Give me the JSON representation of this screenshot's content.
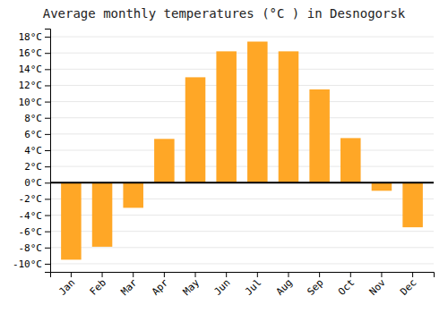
{
  "chart_data": {
    "type": "bar",
    "title": "Average monthly temperatures (°C ) in Desnogorsk",
    "categories": [
      "Jan",
      "Feb",
      "Mar",
      "Apr",
      "May",
      "Jun",
      "Jul",
      "Aug",
      "Sep",
      "Oct",
      "Nov",
      "Dec"
    ],
    "values": [
      -9.5,
      -7.9,
      -3.1,
      5.4,
      13.0,
      16.2,
      17.4,
      16.2,
      11.5,
      5.5,
      -1.0,
      -5.5
    ],
    "color": "#FFA726",
    "ylim": [
      -11,
      19
    ],
    "yticks": [
      {
        "value": -10,
        "label": "-10°C"
      },
      {
        "value": -8,
        "label": "-8°C"
      },
      {
        "value": -6,
        "label": "-6°C"
      },
      {
        "value": -4,
        "label": "-4°C"
      },
      {
        "value": -2,
        "label": "-2°C"
      },
      {
        "value": 0,
        "label": "0°C"
      },
      {
        "value": 2,
        "label": "2°C"
      },
      {
        "value": 4,
        "label": "4°C"
      },
      {
        "value": 6,
        "label": "6°C"
      },
      {
        "value": 8,
        "label": "8°C"
      },
      {
        "value": 10,
        "label": "10°C"
      },
      {
        "value": 12,
        "label": "12°C"
      },
      {
        "value": 14,
        "label": "14°C"
      },
      {
        "value": 16,
        "label": "16°C"
      },
      {
        "value": 18,
        "label": "18°C"
      }
    ],
    "grid": true
  }
}
